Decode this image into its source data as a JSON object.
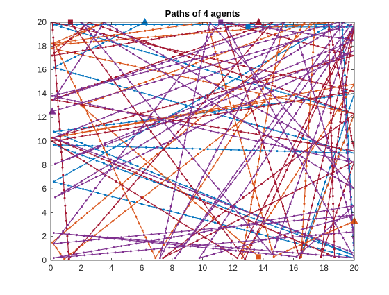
{
  "chart_data": {
    "type": "line",
    "title": "Paths of 4 agents",
    "xlabel": "",
    "ylabel": "",
    "xlim": [
      0,
      20
    ],
    "ylim": [
      0,
      20
    ],
    "x_ticks": [
      0,
      2,
      4,
      6,
      8,
      10,
      12,
      14,
      16,
      18,
      20
    ],
    "y_ticks": [
      0,
      2,
      4,
      6,
      8,
      10,
      12,
      14,
      16,
      18,
      20
    ],
    "grid": false,
    "legend": "none",
    "series": [
      {
        "color": "#0072BD",
        "start_marker": "triangle",
        "end_marker": "square",
        "points": [
          [
            6.2,
            20
          ],
          [
            0.2,
            16.2
          ],
          [
            20,
            9.0
          ],
          [
            0.2,
            9.7
          ],
          [
            20,
            0.4
          ],
          [
            0.2,
            10.8
          ],
          [
            20,
            14.0
          ],
          [
            16.5,
            0.4
          ],
          [
            20,
            12.3
          ],
          [
            0.2,
            19.8
          ],
          [
            18.5,
            19.8
          ],
          [
            0.2,
            6.6
          ],
          [
            20,
            0.2
          ],
          [
            19.2,
            20
          ],
          [
            20,
            19.6
          ],
          [
            13.0,
            19.6
          ]
        ]
      },
      {
        "color": "#D95319",
        "start_marker": "triangle",
        "end_marker": "square",
        "points": [
          [
            20,
            3.3
          ],
          [
            14.7,
            0.3
          ],
          [
            10.3,
            20
          ],
          [
            0.1,
            18.2
          ],
          [
            3.5,
            20
          ],
          [
            0.1,
            17.8
          ],
          [
            20,
            12.3
          ],
          [
            16.5,
            0.3
          ],
          [
            17.4,
            20
          ],
          [
            0.1,
            1.5
          ],
          [
            0.9,
            0.1
          ],
          [
            14.1,
            13.3
          ],
          [
            0.1,
            10.3
          ],
          [
            20,
            14.8
          ],
          [
            12.6,
            0.2
          ],
          [
            15.3,
            20
          ],
          [
            18.6,
            20
          ],
          [
            0.3,
            18.1
          ],
          [
            6.9,
            0.2
          ],
          [
            16.7,
            19.9
          ],
          [
            2.0,
            13.0
          ],
          [
            13.7,
            0.3
          ]
        ]
      },
      {
        "color": "#A2142F",
        "start_marker": "triangle",
        "end_marker": "square",
        "points": [
          [
            13.7,
            20
          ],
          [
            0.1,
            17.2
          ],
          [
            2.5,
            20
          ],
          [
            20,
            12.3
          ],
          [
            7.4,
            0.2
          ],
          [
            20,
            8.3
          ],
          [
            17.8,
            0.3
          ],
          [
            20,
            19.8
          ],
          [
            12.3,
            0.2
          ],
          [
            0.1,
            10.0
          ],
          [
            20,
            14.2
          ],
          [
            0.1,
            20
          ],
          [
            1.2,
            0.1
          ],
          [
            14.6,
            20
          ],
          [
            0.1,
            13.5
          ],
          [
            20,
            9.2
          ],
          [
            18.3,
            20
          ],
          [
            18.7,
            0.3
          ],
          [
            0.1,
            10.3
          ],
          [
            20,
            17.2
          ],
          [
            11.4,
            20
          ],
          [
            16.4,
            0.2
          ],
          [
            20,
            19.7
          ],
          [
            12.8,
            0.1
          ],
          [
            1.3,
            20
          ]
        ]
      },
      {
        "color": "#7E2F8E",
        "start_marker": "triangle",
        "end_marker": "square",
        "points": [
          [
            0.1,
            12.5
          ],
          [
            19.8,
            19.8
          ],
          [
            8.2,
            0.2
          ],
          [
            19.3,
            20
          ],
          [
            0.3,
            5.3
          ],
          [
            20,
            17.6
          ],
          [
            0.3,
            8.1
          ],
          [
            20,
            18.5
          ],
          [
            11.4,
            20
          ],
          [
            20,
            0.2
          ],
          [
            0.2,
            2.3
          ],
          [
            16.2,
            0.3
          ],
          [
            20,
            4.6
          ],
          [
            0.2,
            0.2
          ],
          [
            20,
            2.4
          ],
          [
            16.3,
            18.5
          ],
          [
            0.2,
            10.3
          ],
          [
            20,
            0.6
          ],
          [
            19.0,
            20
          ],
          [
            0.1,
            13.8
          ],
          [
            20,
            8.2
          ],
          [
            3.5,
            20
          ],
          [
            0.2,
            13.5
          ],
          [
            15.4,
            20
          ],
          [
            7.2,
            0.2
          ],
          [
            10.5,
            20
          ],
          [
            20,
            6.0
          ],
          [
            2.0,
            20
          ],
          [
            14.6,
            0.5
          ],
          [
            20,
            19.7
          ],
          [
            9.8,
            0.2
          ],
          [
            20,
            3.8
          ],
          [
            0.2,
            1.4
          ],
          [
            11.2,
            20
          ]
        ]
      }
    ]
  }
}
